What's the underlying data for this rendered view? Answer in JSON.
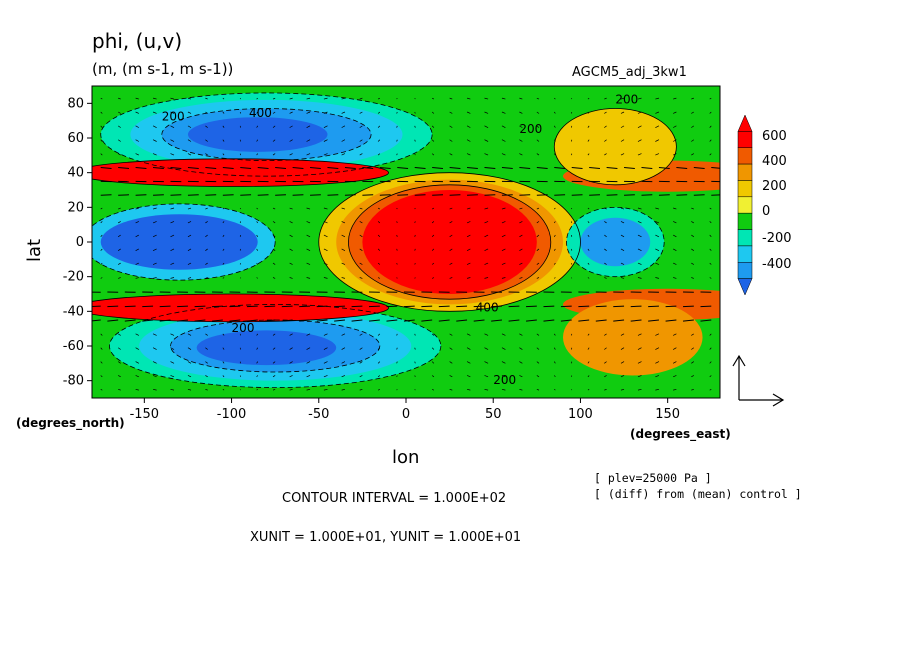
{
  "chart_data": {
    "type": "heatmap",
    "title": "phi, (u,v)",
    "units_line": "(m, (m s-1, m s-1))",
    "dataset": "AGCM5_adj_3kw1",
    "xlabel": "lon",
    "ylabel": "lat",
    "x_unit_label": "(degrees_east)",
    "y_unit_label": "(degrees_north)",
    "xlim": [
      -180,
      180
    ],
    "ylim": [
      -90,
      90
    ],
    "x_ticks": [
      "-150",
      "-100",
      "-50",
      "0",
      "50",
      "100",
      "150"
    ],
    "x_tick_values": [
      -150,
      -100,
      -50,
      0,
      50,
      100,
      150
    ],
    "y_ticks": [
      "80",
      "60",
      "40",
      "20",
      "0",
      "-20",
      "-40",
      "-60",
      "-80"
    ],
    "y_tick_values": [
      80,
      60,
      40,
      20,
      0,
      -20,
      -40,
      -60,
      -80
    ],
    "colorbar": {
      "labels": [
        "600",
        "400",
        "200",
        "0",
        "-200",
        "-400"
      ],
      "levels": [
        -500,
        -400,
        -300,
        -200,
        -100,
        0,
        100,
        200,
        300,
        400,
        500
      ],
      "colors": [
        "#1e64e6",
        "#1e9bf0",
        "#1ec8f0",
        "#00e6b4",
        "#10cc10",
        "#f0f032",
        "#f0c800",
        "#f09600",
        "#f05a00",
        "#ff0000",
        "#ff0000"
      ]
    },
    "contour_labels": [
      "400",
      "200",
      "200",
      "400",
      "200",
      "200",
      "200"
    ],
    "notes": [
      "[ plev=25000 Pa ]",
      "[ (diff) from (mean) control ]"
    ],
    "contour_interval": "CONTOUR INTERVAL = 1.000E+02",
    "units_scale": "XUNIT = 1.000E+01, YUNIT = 1.000E+01"
  }
}
